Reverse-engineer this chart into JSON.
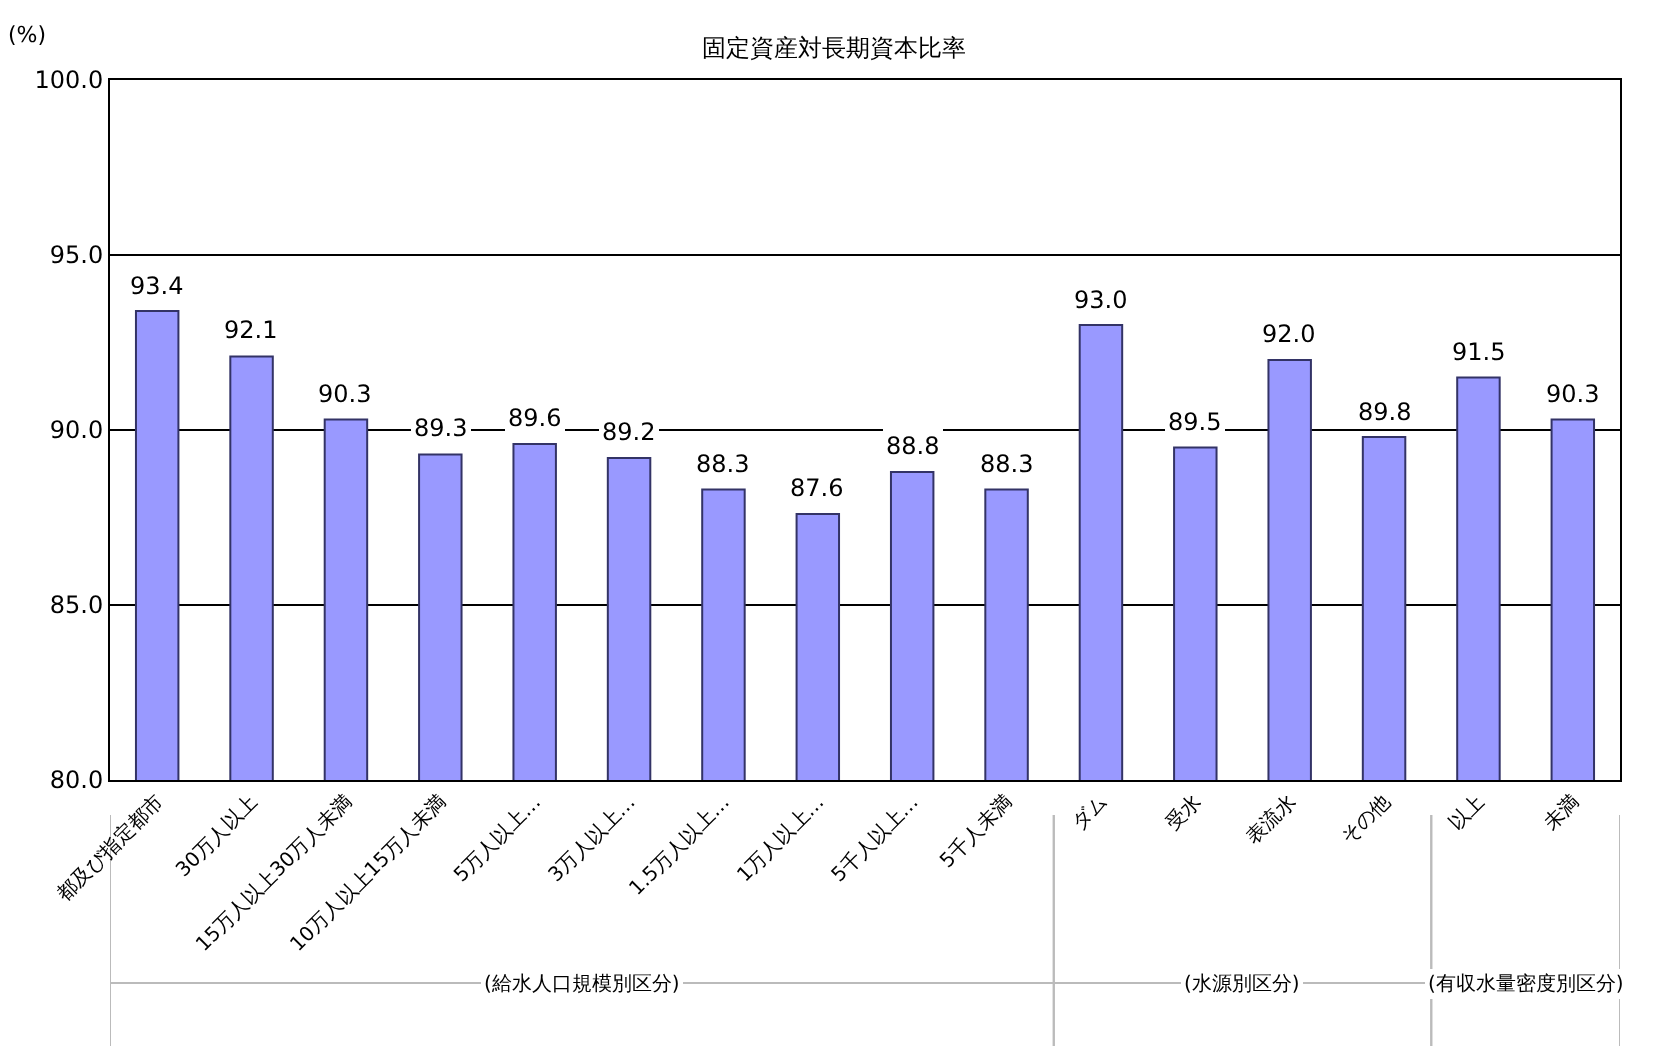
{
  "chart_data": {
    "type": "bar",
    "title": "固定資産対長期資本比率",
    "ylabel": "(%)",
    "categories": [
      "都及び指定都市",
      "30万人以上",
      "15万人以上30万人未満",
      "10万人以上15万人未満",
      "5万人以上…",
      "3万人以上…",
      "1.5万人以上…",
      "1万人以上…",
      "5千人以上…",
      "5千人未満",
      "ダム",
      "受水",
      "表流水",
      "その他",
      "以上",
      "未満"
    ],
    "values": [
      93.4,
      92.1,
      90.3,
      89.3,
      89.6,
      89.2,
      88.3,
      87.6,
      88.8,
      88.3,
      93.0,
      89.5,
      92.0,
      89.8,
      91.5,
      90.3
    ],
    "value_labels": [
      "93.4",
      "92.1",
      "90.3",
      "89.3",
      "89.6",
      "89.2",
      "88.3",
      "87.6",
      "88.8",
      "88.3",
      "93.0",
      "89.5",
      "92.0",
      "89.8",
      "91.5",
      "90.3"
    ],
    "color": "#9999ff",
    "ylim": [
      80,
      100
    ],
    "yticks": [
      {
        "value": 80,
        "label": "80.0"
      },
      {
        "value": 85,
        "label": "85.0"
      },
      {
        "value": 90,
        "label": "90.0"
      },
      {
        "value": 95,
        "label": "95.0"
      },
      {
        "value": 100,
        "label": "100.0"
      }
    ],
    "grid": "y",
    "annotations": [
      "(給水人口規模別区分)",
      "(水源別区分)",
      "(有収水量密度別区分)"
    ]
  }
}
